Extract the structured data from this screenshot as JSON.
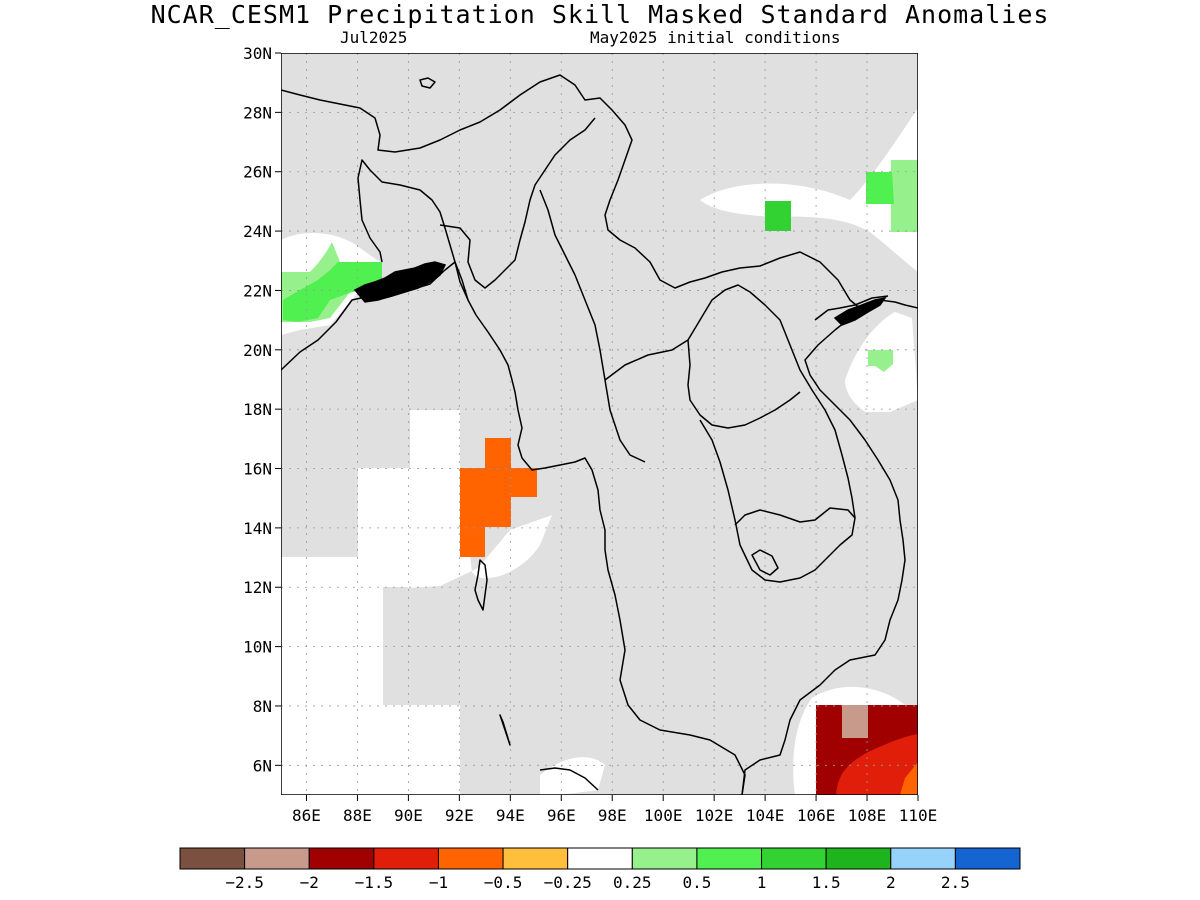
{
  "title": "NCAR_CESM1 Precipitation Skill Masked Standard Anomalies",
  "valid_month": "Jul2025",
  "init_text": "May2025 initial conditions",
  "lat_labels": [
    "30N",
    "28N",
    "26N",
    "24N",
    "22N",
    "20N",
    "18N",
    "16N",
    "14N",
    "12N",
    "10N",
    "8N",
    "6N"
  ],
  "lon_labels": [
    "86E",
    "88E",
    "90E",
    "92E",
    "94E",
    "96E",
    "98E",
    "100E",
    "102E",
    "104E",
    "106E",
    "108E",
    "110E"
  ],
  "colorbar": {
    "colors": [
      "#7a5040",
      "#c89a8c",
      "#a00000",
      "#e01e0a",
      "#ff6400",
      "#ffbe3c",
      "#ffffff",
      "#96f08c",
      "#50f050",
      "#32d232",
      "#1eb41e",
      "#96d2fa",
      "#1464d2"
    ],
    "labels": [
      "−2.5",
      "−2",
      "−1.5",
      "−1",
      "−0.5",
      "−0.25",
      "0.25",
      "0.5",
      "1",
      "1.5",
      "2",
      "2.5"
    ]
  },
  "map_colors": {
    "masked": "#e0e0e0",
    "neutral": "#ffffff",
    "coast": "#000000"
  }
}
